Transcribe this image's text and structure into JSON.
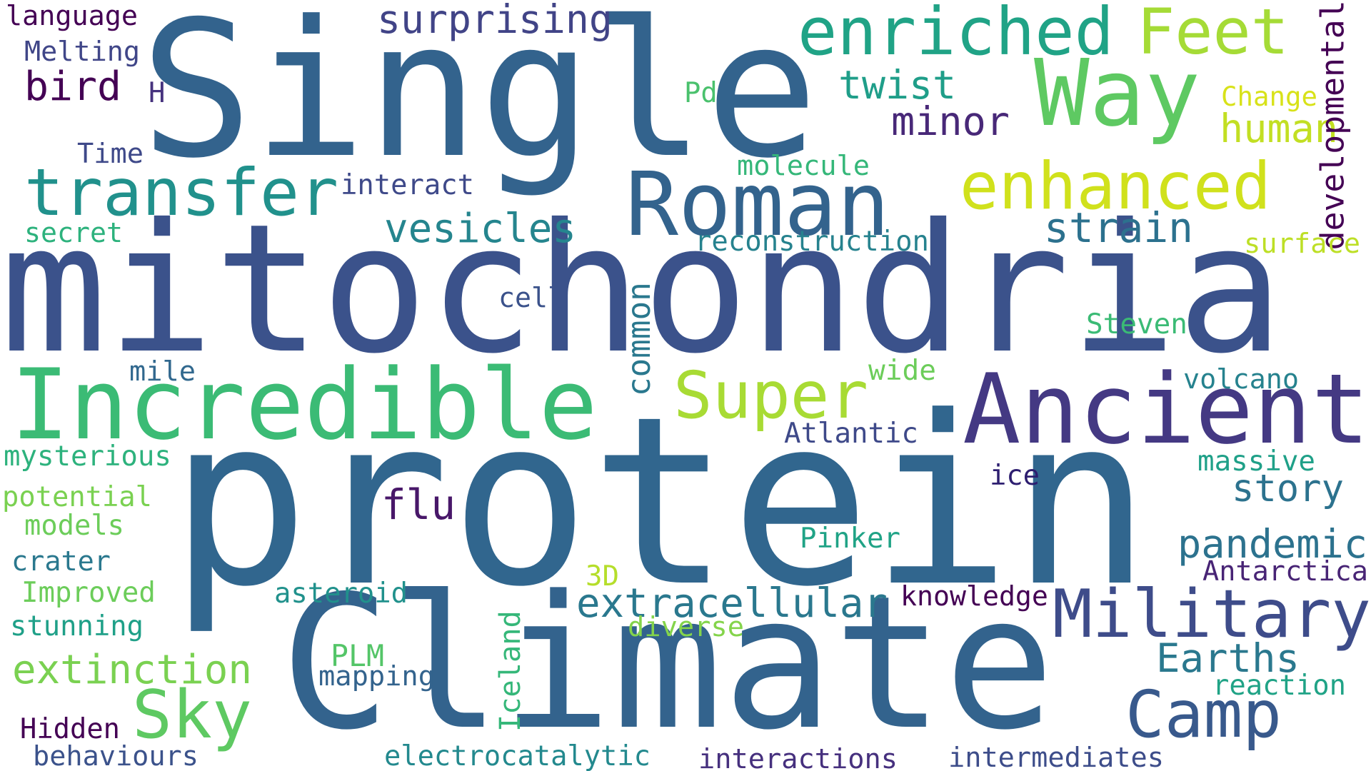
{
  "words": [
    {
      "text": "Single",
      "color": "#33638d"
    },
    {
      "text": "mitochondria",
      "color": "#3b528b"
    },
    {
      "text": "protein",
      "color": "#31668e"
    },
    {
      "text": "Climate",
      "color": "#33638d"
    },
    {
      "text": "Incredible",
      "color": "#3bbb75"
    },
    {
      "text": "Ancient",
      "color": "#443983"
    },
    {
      "text": "Roman",
      "color": "#33638d"
    },
    {
      "text": "Way",
      "color": "#5ec962"
    },
    {
      "text": "transfer",
      "color": "#21918c"
    },
    {
      "text": "enriched",
      "color": "#20a386"
    },
    {
      "text": "Feet",
      "color": "#a5db36"
    },
    {
      "text": "enhanced",
      "color": "#d0e11c"
    },
    {
      "text": "Military",
      "color": "#3e4c8a"
    },
    {
      "text": "Super",
      "color": "#a8db34"
    },
    {
      "text": "Camp",
      "color": "#38598c"
    },
    {
      "text": "Sky",
      "color": "#5ec962"
    },
    {
      "text": "extracellular",
      "color": "#2a788e"
    },
    {
      "text": "extinction",
      "color": "#7ad151"
    },
    {
      "text": "pandemic",
      "color": "#2c728e"
    },
    {
      "text": "Earths",
      "color": "#2a788e"
    },
    {
      "text": "strain",
      "color": "#2c718e"
    },
    {
      "text": "vesicles",
      "color": "#25858e"
    },
    {
      "text": "story",
      "color": "#2c728e"
    },
    {
      "text": "surprising",
      "color": "#414487"
    },
    {
      "text": "twist",
      "color": "#1f9e89"
    },
    {
      "text": "minor",
      "color": "#482878"
    },
    {
      "text": "human",
      "color": "#c2df23"
    },
    {
      "text": "bird",
      "color": "#440154"
    },
    {
      "text": "flu",
      "color": "#481769"
    },
    {
      "text": "language",
      "color": "#440154"
    },
    {
      "text": "Melting",
      "color": "#404688"
    },
    {
      "text": "H",
      "color": "#46327e"
    },
    {
      "text": "Pd",
      "color": "#4ac16d"
    },
    {
      "text": "Change",
      "color": "#d8e219"
    },
    {
      "text": "developmental",
      "color": "#440154"
    },
    {
      "text": "Time",
      "color": "#3e4989"
    },
    {
      "text": "molecule",
      "color": "#35b779"
    },
    {
      "text": "interact",
      "color": "#3e4989"
    },
    {
      "text": "secret",
      "color": "#2db27d"
    },
    {
      "text": "reconstruction",
      "color": "#26828e"
    },
    {
      "text": "surface",
      "color": "#bddf26"
    },
    {
      "text": "cell",
      "color": "#3b528b"
    },
    {
      "text": "common",
      "color": "#2a788e"
    },
    {
      "text": "Steven",
      "color": "#3bbb75"
    },
    {
      "text": "mile",
      "color": "#31688e"
    },
    {
      "text": "wide",
      "color": "#6ccd5a"
    },
    {
      "text": "volcano",
      "color": "#26828e"
    },
    {
      "text": "Atlantic",
      "color": "#3e4989"
    },
    {
      "text": "mysterious",
      "color": "#2db27d"
    },
    {
      "text": "massive",
      "color": "#1fa088"
    },
    {
      "text": "ice",
      "color": "#2d1e70"
    },
    {
      "text": "potential",
      "color": "#7ad151"
    },
    {
      "text": "models",
      "color": "#6ccd5a"
    },
    {
      "text": "Pinker",
      "color": "#20a386"
    },
    {
      "text": "crater",
      "color": "#2a788e"
    },
    {
      "text": "3D",
      "color": "#b5de2b"
    },
    {
      "text": "Antarctica",
      "color": "#482475"
    },
    {
      "text": "Improved",
      "color": "#6ccd5a"
    },
    {
      "text": "asteroid",
      "color": "#21918c"
    },
    {
      "text": "knowledge",
      "color": "#440154"
    },
    {
      "text": "stunning",
      "color": "#1fa088"
    },
    {
      "text": "diverse",
      "color": "#84d44b"
    },
    {
      "text": "PLM",
      "color": "#54c568"
    },
    {
      "text": "mapping",
      "color": "#33638d"
    },
    {
      "text": "Iceland",
      "color": "#35b779"
    },
    {
      "text": "reaction",
      "color": "#20a386"
    },
    {
      "text": "Hidden",
      "color": "#440154"
    },
    {
      "text": "behaviours",
      "color": "#3b528b"
    },
    {
      "text": "electrocatalytic",
      "color": "#23898e"
    },
    {
      "text": "interactions",
      "color": "#46307e"
    },
    {
      "text": "intermediates",
      "color": "#3d4d8a"
    }
  ]
}
